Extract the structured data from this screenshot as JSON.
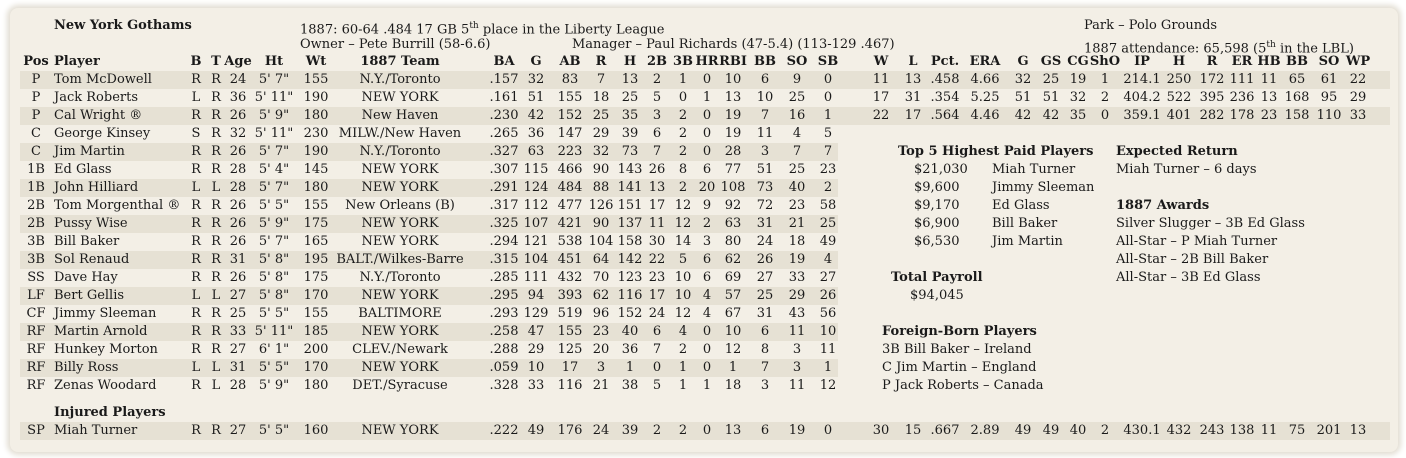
{
  "header": {
    "team": "New York Gothams",
    "season_line": "1887:  60-64  .484  17 GB  ",
    "place_num": "5",
    "place_sup": "th",
    "place_rest": " place in the Liberty League",
    "owner": "Owner – Pete Burrill (58-6.6)",
    "manager": "Manager – Paul Richards (47-5.4)  (113-129 .467)",
    "park": "Park – Polo Grounds",
    "attendance_pre": "1887 attendance:  65,598  (",
    "attendance_num": "5",
    "attendance_sup": "th",
    "attendance_post": " in the LBL)"
  },
  "columns": [
    "Pos",
    "Player",
    "B",
    "T",
    "Age",
    "Ht",
    "Wt",
    "1887 Team",
    "BA",
    "G",
    "AB",
    "R",
    "H",
    "2B",
    "3B",
    "HR",
    "RBI",
    "BB",
    "SO",
    "SB",
    "W",
    "L",
    "Pct.",
    "ERA",
    "G",
    "GS",
    "CG",
    "ShO",
    "IP",
    "H",
    "R",
    "ER",
    "HB",
    "BB",
    "SO",
    "WP"
  ],
  "players": [
    {
      "pos": "P",
      "name": "Tom McDowell",
      "b": "R",
      "t": "R",
      "age": "24",
      "ht": "5' 7\"",
      "wt": "155",
      "team": "N.Y./Toronto",
      "bat": [
        ".157",
        "32",
        "83",
        "7",
        "13",
        "2",
        "1",
        "0",
        "10",
        "6",
        "9",
        "0"
      ],
      "pitch": [
        "11",
        "13",
        ".458",
        "4.66",
        "32",
        "25",
        "19",
        "1",
        "214.1",
        "250",
        "172",
        "111",
        "11",
        "65",
        "61",
        "22"
      ]
    },
    {
      "pos": "P",
      "name": "Jack Roberts",
      "b": "L",
      "t": "R",
      "age": "36",
      "ht": "5' 11\"",
      "wt": "190",
      "team": "NEW YORK",
      "bat": [
        ".161",
        "51",
        "155",
        "18",
        "25",
        "5",
        "0",
        "1",
        "13",
        "10",
        "25",
        "0"
      ],
      "pitch": [
        "17",
        "31",
        ".354",
        "5.25",
        "51",
        "51",
        "32",
        "2",
        "404.2",
        "522",
        "395",
        "236",
        "13",
        "168",
        "95",
        "29"
      ]
    },
    {
      "pos": "P",
      "name": "Cal Wright ®",
      "b": "R",
      "t": "R",
      "age": "26",
      "ht": "5' 9\"",
      "wt": "180",
      "team": "New Haven",
      "bat": [
        ".230",
        "42",
        "152",
        "25",
        "35",
        "3",
        "2",
        "0",
        "19",
        "7",
        "16",
        "1"
      ],
      "pitch": [
        "22",
        "17",
        ".564",
        "4.46",
        "42",
        "42",
        "35",
        "0",
        "359.1",
        "401",
        "282",
        "178",
        "23",
        "158",
        "110",
        "33"
      ]
    },
    {
      "pos": "C",
      "name": "George Kinsey",
      "b": "S",
      "t": "R",
      "age": "32",
      "ht": "5' 11\"",
      "wt": "230",
      "team": "MILW./New Haven",
      "bat": [
        ".265",
        "36",
        "147",
        "29",
        "39",
        "6",
        "2",
        "0",
        "19",
        "11",
        "4",
        "5"
      ],
      "pitch": []
    },
    {
      "pos": "C",
      "name": "Jim Martin",
      "b": "R",
      "t": "R",
      "age": "26",
      "ht": "5' 7\"",
      "wt": "190",
      "team": "N.Y./Toronto",
      "bat": [
        ".327",
        "63",
        "223",
        "32",
        "73",
        "7",
        "2",
        "0",
        "28",
        "3",
        "7",
        "7"
      ],
      "pitch": []
    },
    {
      "pos": "1B",
      "name": "Ed Glass",
      "b": "R",
      "t": "R",
      "age": "28",
      "ht": "5' 4\"",
      "wt": "145",
      "team": "NEW YORK",
      "bat": [
        ".307",
        "115",
        "466",
        "90",
        "143",
        "26",
        "8",
        "6",
        "77",
        "51",
        "25",
        "23"
      ],
      "pitch": []
    },
    {
      "pos": "1B",
      "name": "John Hilliard",
      "b": "L",
      "t": "L",
      "age": "28",
      "ht": "5' 7\"",
      "wt": "180",
      "team": "NEW YORK",
      "bat": [
        ".291",
        "124",
        "484",
        "88",
        "141",
        "13",
        "2",
        "20",
        "108",
        "73",
        "40",
        "2"
      ],
      "pitch": []
    },
    {
      "pos": "2B",
      "name": "Tom Morgenthal ®",
      "b": "R",
      "t": "R",
      "age": "26",
      "ht": "5' 5\"",
      "wt": "155",
      "team": "New Orleans (B)",
      "bat": [
        ".317",
        "112",
        "477",
        "126",
        "151",
        "17",
        "12",
        "9",
        "92",
        "72",
        "23",
        "58"
      ],
      "pitch": []
    },
    {
      "pos": "2B",
      "name": "Pussy Wise",
      "b": "R",
      "t": "R",
      "age": "26",
      "ht": "5' 9\"",
      "wt": "175",
      "team": "NEW YORK",
      "bat": [
        ".325",
        "107",
        "421",
        "90",
        "137",
        "11",
        "12",
        "2",
        "63",
        "31",
        "21",
        "25"
      ],
      "pitch": []
    },
    {
      "pos": "3B",
      "name": "Bill Baker",
      "b": "R",
      "t": "R",
      "age": "26",
      "ht": "5' 7\"",
      "wt": "165",
      "team": "NEW YORK",
      "bat": [
        ".294",
        "121",
        "538",
        "104",
        "158",
        "30",
        "14",
        "3",
        "80",
        "24",
        "18",
        "49"
      ],
      "pitch": []
    },
    {
      "pos": "3B",
      "name": "Sol Renaud",
      "b": "R",
      "t": "R",
      "age": "31",
      "ht": "5' 8\"",
      "wt": "195",
      "team": "BALT./Wilkes-Barre",
      "bat": [
        ".315",
        "104",
        "451",
        "64",
        "142",
        "22",
        "5",
        "6",
        "62",
        "26",
        "19",
        "4"
      ],
      "pitch": []
    },
    {
      "pos": "SS",
      "name": "Dave Hay",
      "b": "R",
      "t": "R",
      "age": "26",
      "ht": "5' 8\"",
      "wt": "175",
      "team": "N.Y./Toronto",
      "bat": [
        ".285",
        "111",
        "432",
        "70",
        "123",
        "23",
        "10",
        "6",
        "69",
        "27",
        "33",
        "27"
      ],
      "pitch": []
    },
    {
      "pos": "LF",
      "name": "Bert Gellis",
      "b": "L",
      "t": "L",
      "age": "27",
      "ht": "5' 8\"",
      "wt": "170",
      "team": "NEW YORK",
      "bat": [
        ".295",
        "94",
        "393",
        "62",
        "116",
        "17",
        "10",
        "4",
        "57",
        "25",
        "29",
        "26"
      ],
      "pitch": []
    },
    {
      "pos": "CF",
      "name": "Jimmy Sleeman",
      "b": "R",
      "t": "R",
      "age": "25",
      "ht": "5' 5\"",
      "wt": "155",
      "team": "BALTIMORE",
      "bat": [
        ".293",
        "129",
        "519",
        "96",
        "152",
        "24",
        "12",
        "4",
        "67",
        "31",
        "43",
        "56"
      ],
      "pitch": []
    },
    {
      "pos": "RF",
      "name": "Martin Arnold",
      "b": "R",
      "t": "R",
      "age": "33",
      "ht": "5' 11\"",
      "wt": "185",
      "team": "NEW YORK",
      "bat": [
        ".258",
        "47",
        "155",
        "23",
        "40",
        "6",
        "4",
        "0",
        "10",
        "6",
        "11",
        "10"
      ],
      "pitch": []
    },
    {
      "pos": "RF",
      "name": "Hunkey Morton",
      "b": "R",
      "t": "R",
      "age": "27",
      "ht": "6' 1\"",
      "wt": "200",
      "team": "CLEV./Newark",
      "bat": [
        ".288",
        "29",
        "125",
        "20",
        "36",
        "7",
        "2",
        "0",
        "12",
        "8",
        "3",
        "11"
      ],
      "pitch": []
    },
    {
      "pos": "RF",
      "name": "Billy Ross",
      "b": "L",
      "t": "L",
      "age": "31",
      "ht": "5' 5\"",
      "wt": "170",
      "team": "NEW YORK",
      "bat": [
        ".059",
        "10",
        "17",
        "3",
        "1",
        "0",
        "1",
        "0",
        "1",
        "7",
        "3",
        "1"
      ],
      "pitch": []
    },
    {
      "pos": "RF",
      "name": "Zenas Woodard",
      "b": "R",
      "t": "L",
      "age": "28",
      "ht": "5' 9\"",
      "wt": "180",
      "team": "DET./Syracuse",
      "bat": [
        ".328",
        "33",
        "116",
        "21",
        "38",
        "5",
        "1",
        "1",
        "18",
        "3",
        "11",
        "12"
      ],
      "pitch": []
    }
  ],
  "injured": {
    "heading": "Injured Players",
    "player": {
      "pos": "SP",
      "name": "Miah Turner",
      "b": "R",
      "t": "R",
      "age": "27",
      "ht": "5' 5\"",
      "wt": "160",
      "team": "NEW YORK",
      "bat": [
        ".222",
        "49",
        "176",
        "24",
        "39",
        "2",
        "2",
        "0",
        "13",
        "6",
        "19",
        "0"
      ],
      "pitch": [
        "30",
        "15",
        ".667",
        "2.89",
        "49",
        "49",
        "40",
        "2",
        "430.1",
        "432",
        "243",
        "138",
        "11",
        "75",
        "201",
        "13"
      ]
    }
  },
  "top_paid": {
    "heading": "Top 5 Highest Paid Players",
    "rows": [
      {
        "salary": "$21,030",
        "name": "Miah Turner"
      },
      {
        "salary": "$9,600",
        "name": "Jimmy Sleeman"
      },
      {
        "salary": "$9,170",
        "name": "Ed Glass"
      },
      {
        "salary": "$6,900",
        "name": "Bill Baker"
      },
      {
        "salary": "$6,530",
        "name": "Jim Martin"
      }
    ]
  },
  "payroll": {
    "heading": "Total Payroll",
    "value": "$94,045"
  },
  "expected_return": {
    "heading": "Expected Return",
    "value": "Miah Turner – 6 days"
  },
  "awards": {
    "heading": "1887 Awards",
    "items": [
      "Silver Slugger – 3B Ed Glass",
      "All-Star – P Miah Turner",
      "All-Star – 2B Bill Baker",
      "All-Star – 3B Ed Glass"
    ]
  },
  "foreign_born": {
    "heading": "Foreign-Born Players",
    "items": [
      "3B Bill Baker – Ireland",
      "C Jim Martin – England",
      "P Jack Roberts – Canada"
    ]
  },
  "colors": {
    "background": "#f3efe6",
    "row_shade": "#e6e1d4",
    "text": "#1a1a1a"
  }
}
